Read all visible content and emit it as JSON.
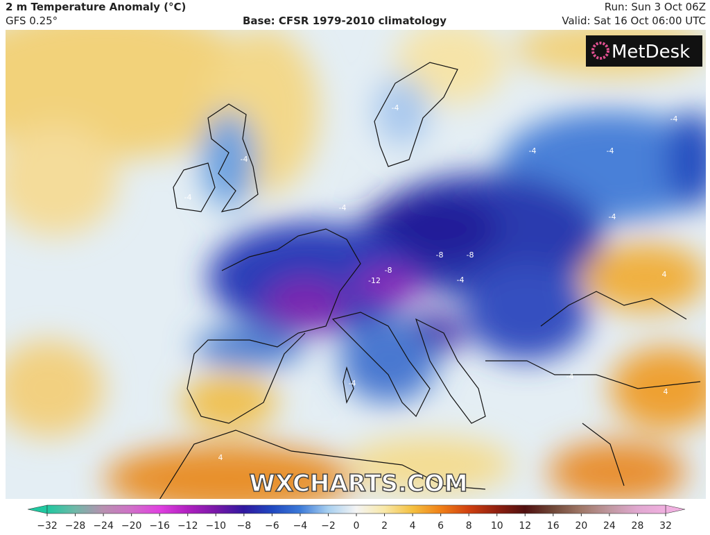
{
  "header": {
    "title": "2 m Temperature Anomaly (°C)",
    "model": "GFS 0.25°",
    "base": "Base: CFSR 1979-2010 climatology",
    "run": "Run: Sun 3 Oct 06Z",
    "valid": "Valid: Sat 16 Oct 06:00 UTC"
  },
  "logo": "MetDesk",
  "watermark": "WXCHARTS.COM",
  "contour_labels": [
    "-4",
    "-4",
    "-4",
    "-4",
    "-4",
    "-4",
    "-4",
    "-4",
    "-8",
    "-8",
    "-12",
    "-8",
    "-4",
    "-4",
    "-4",
    "4",
    "4",
    "4"
  ],
  "colorbar": {
    "ticks": [
      {
        "value": -32,
        "label": "−32"
      },
      {
        "value": -28,
        "label": "−28"
      },
      {
        "value": -24,
        "label": "−24"
      },
      {
        "value": -20,
        "label": "−20"
      },
      {
        "value": -16,
        "label": "−16"
      },
      {
        "value": -12,
        "label": "−12"
      },
      {
        "value": -10,
        "label": "−10"
      },
      {
        "value": -8,
        "label": "−8"
      },
      {
        "value": -6,
        "label": "−6"
      },
      {
        "value": -4,
        "label": "−4"
      },
      {
        "value": -2,
        "label": "−2"
      },
      0,
      2,
      4,
      6,
      8,
      10,
      12,
      16,
      20,
      24,
      28,
      32
    ],
    "colors": [
      "#20c8a0",
      "#70b8a8",
      "#b890b0",
      "#d070c8",
      "#e040e0",
      "#b020c0",
      "#7818a8",
      "#3018a0",
      "#2048c0",
      "#3c7ad8",
      "#a8d0f0",
      "#f4f4f4",
      "#f8e8a8",
      "#f4c040",
      "#f08018",
      "#d04010",
      "#902010",
      "#501010",
      "#704838",
      "#a07868",
      "#c098a0",
      "#e0a8d0",
      "#f0b0e0"
    ]
  }
}
